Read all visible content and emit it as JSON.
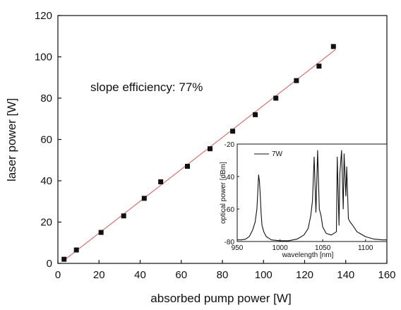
{
  "chart_data": [
    {
      "type": "scatter",
      "xlabel": "absorbed pump power [W]",
      "ylabel": "laser power [W]",
      "xlim": [
        0,
        160
      ],
      "ylim": [
        0,
        120
      ],
      "xticks": [
        "0",
        "20",
        "40",
        "60",
        "80",
        "100",
        "120",
        "140",
        "160"
      ],
      "yticks": [
        "0",
        "20",
        "40",
        "60",
        "80",
        "100",
        "120"
      ],
      "annotation": "slope efficiency: 77%",
      "grid": false,
      "points": {
        "x": [
          3,
          9,
          21,
          32,
          42,
          50,
          63,
          74,
          85,
          96,
          106,
          116,
          127,
          134
        ],
        "y": [
          2,
          6.5,
          15,
          23,
          31.5,
          39.5,
          47,
          55.5,
          64,
          72,
          80,
          88.5,
          95.5,
          105
        ]
      },
      "fit_line": {
        "x": [
          3,
          135
        ],
        "y": [
          1.5,
          103.5
        ],
        "color": "#d87a7a"
      },
      "marker_color": "#111111"
    },
    {
      "type": "line",
      "xlabel": "wavelength [nm]",
      "ylabel": "optical power [dBm]",
      "xlim": [
        950,
        1125
      ],
      "ylim": [
        -80,
        -20
      ],
      "xticks": [
        "950",
        "1000",
        "1050",
        "1100"
      ],
      "yticks": [
        "-20",
        "-40",
        "-60",
        "-80"
      ],
      "legend": {
        "label": "7W",
        "position": "top-left"
      },
      "series": [
        {
          "x": [
            950,
            955,
            960,
            964,
            968,
            971,
            973,
            974,
            975,
            976,
            977,
            978,
            979,
            981,
            984,
            990,
            1000,
            1010,
            1020,
            1028,
            1033,
            1036,
            1038,
            1040,
            1042,
            1044,
            1046,
            1048,
            1050,
            1054,
            1060,
            1066,
            1067,
            1069,
            1070,
            1072,
            1074,
            1075,
            1077,
            1078,
            1080,
            1082,
            1085,
            1090,
            1100,
            1110,
            1120,
            1125
          ],
          "y": [
            -79,
            -79,
            -78.5,
            -77,
            -73,
            -68,
            -60,
            -50,
            -39,
            -43,
            -52,
            -63,
            -70,
            -74,
            -77,
            -79,
            -79.5,
            -79.5,
            -78.5,
            -76,
            -72,
            -64,
            -55,
            -28,
            -62,
            -24,
            -60,
            -64,
            -71,
            -75,
            -76,
            -74,
            -28,
            -70,
            -38,
            -24,
            -60,
            -26,
            -52,
            -34,
            -66,
            -68,
            -70,
            -74,
            -77,
            -78.5,
            -79,
            -79
          ]
        }
      ]
    }
  ]
}
